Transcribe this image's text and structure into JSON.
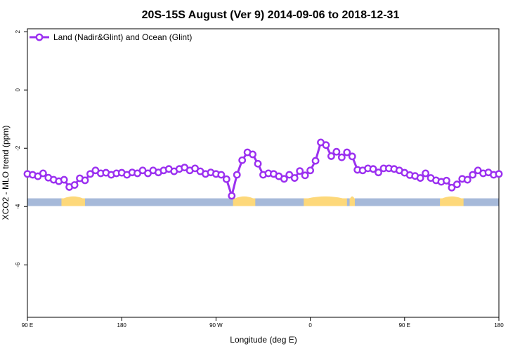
{
  "chart_data": {
    "type": "line",
    "title": "20S-15S August (Ver 9)   2014-09-06 to 2018-12-31",
    "xlabel": "Longitude (deg E)",
    "ylabel": "XCO2 - MLO trend (ppm)",
    "xlim": [
      90,
      450
    ],
    "ylim": [
      -7.8,
      2.1
    ],
    "x_ticks": [
      {
        "value": 90,
        "label": "90 E"
      },
      {
        "value": 162,
        "label": "180"
      },
      {
        "value": 234,
        "label": "90 W"
      },
      {
        "value": 306,
        "label": "0"
      },
      {
        "value": 378,
        "label": "90 E"
      },
      {
        "value": 450,
        "label": "180"
      }
    ],
    "y_ticks": [
      {
        "value": 2,
        "label": "2"
      },
      {
        "value": 0,
        "label": "0"
      },
      {
        "value": -2,
        "label": "-2"
      },
      {
        "value": -4,
        "label": "-4"
      },
      {
        "value": -6,
        "label": "-6"
      }
    ],
    "grid": false,
    "legend_position": "top-left",
    "series": [
      {
        "name": "Land (Nadir&Glint) and Ocean (Glint)",
        "color": "#9b30f0",
        "x": [
          90,
          94,
          98,
          102,
          106,
          110,
          114,
          118,
          122,
          126,
          130,
          134,
          138,
          142,
          146,
          150,
          154,
          158,
          162,
          166,
          170,
          174,
          178,
          182,
          186,
          190,
          194,
          198,
          202,
          206,
          210,
          214,
          218,
          222,
          226,
          230,
          234,
          238,
          242,
          246,
          250,
          254,
          258,
          262,
          266,
          270,
          274,
          278,
          282,
          286,
          290,
          294,
          298,
          302,
          306,
          310,
          314,
          318,
          322,
          326,
          330,
          334,
          338,
          342,
          346,
          350,
          354,
          358,
          362,
          366,
          370,
          374,
          378,
          382,
          386,
          390,
          394,
          398,
          402,
          406,
          410,
          414,
          418,
          422,
          426,
          430,
          434,
          438,
          442,
          446,
          450
        ],
        "y": [
          -2.88,
          -2.91,
          -2.96,
          -2.86,
          -3.01,
          -3.08,
          -3.13,
          -3.08,
          -3.33,
          -3.26,
          -3.03,
          -3.1,
          -2.88,
          -2.76,
          -2.86,
          -2.84,
          -2.91,
          -2.86,
          -2.84,
          -2.91,
          -2.83,
          -2.86,
          -2.76,
          -2.86,
          -2.76,
          -2.83,
          -2.76,
          -2.71,
          -2.79,
          -2.71,
          -2.66,
          -2.76,
          -2.69,
          -2.79,
          -2.88,
          -2.83,
          -2.88,
          -2.91,
          -3.06,
          -3.63,
          -2.91,
          -2.41,
          -2.14,
          -2.21,
          -2.53,
          -2.91,
          -2.86,
          -2.88,
          -2.96,
          -3.05,
          -2.91,
          -3.02,
          -2.78,
          -2.93,
          -2.76,
          -2.43,
          -1.8,
          -1.89,
          -2.27,
          -2.12,
          -2.31,
          -2.14,
          -2.28,
          -2.74,
          -2.76,
          -2.69,
          -2.71,
          -2.83,
          -2.69,
          -2.69,
          -2.71,
          -2.76,
          -2.84,
          -2.92,
          -2.95,
          -3.02,
          -2.86,
          -3.02,
          -3.1,
          -3.15,
          -3.11,
          -3.35,
          -3.24,
          -3.05,
          -3.08,
          -2.91,
          -2.76,
          -2.86,
          -2.83,
          -2.91,
          -2.88
        ]
      }
    ],
    "surface_band": {
      "y": -3.85,
      "ocean_color": "#a6b9d9",
      "land_color": "#fdd87a",
      "land_segments": [
        [
          116,
          134
        ],
        [
          247,
          264
        ],
        [
          301,
          334
        ],
        [
          336,
          340
        ],
        [
          405,
          423
        ]
      ]
    }
  }
}
